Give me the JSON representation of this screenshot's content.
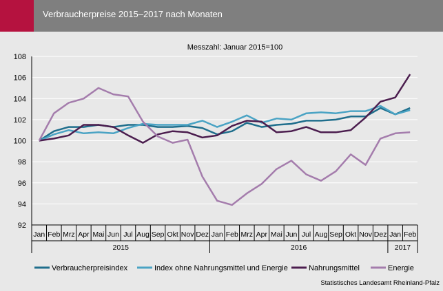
{
  "header": {
    "title": "Verbraucherpreise 2015–2017 nach Monaten"
  },
  "source": "Statistisches Landesamt Rheinland-Pfalz",
  "colors": {
    "header_bg": "#7f7f7f",
    "accent": "#b5123f",
    "Verbraucherpreisindex": "#1f6e8c",
    "Index ohne Nahrungsmittel und Energie": "#4aa3c4",
    "Nahrungsmittel": "#4b1d4e",
    "Energie": "#a47cac"
  },
  "chart_data": {
    "type": "line",
    "subtitle": "Messzahl: Januar 2015=100",
    "categories": [
      "Jan",
      "Feb",
      "Mrz",
      "Apr",
      "Mai",
      "Jun",
      "Jul",
      "Aug",
      "Sep",
      "Okt",
      "Nov",
      "Dez",
      "Jan",
      "Feb",
      "Mrz",
      "Apr",
      "Mai",
      "Jun",
      "Jul",
      "Aug",
      "Sep",
      "Okt",
      "Nov",
      "Dez",
      "Jan",
      "Feb"
    ],
    "years": [
      {
        "label": "2015",
        "start": 0,
        "count": 12
      },
      {
        "label": "2016",
        "start": 12,
        "count": 12
      },
      {
        "label": "2017",
        "start": 24,
        "count": 2
      }
    ],
    "ylim": [
      92,
      108
    ],
    "yticks": [
      92,
      94,
      96,
      98,
      100,
      102,
      104,
      106,
      108
    ],
    "grid": "horizontal",
    "legend_position": "bottom",
    "series": [
      {
        "name": "Verbraucherpreisindex",
        "color": "#1f6e8c",
        "values": [
          100.0,
          100.9,
          101.3,
          101.3,
          101.5,
          101.3,
          101.5,
          101.5,
          101.3,
          101.3,
          101.4,
          101.2,
          100.6,
          100.9,
          101.7,
          101.3,
          101.5,
          101.6,
          101.9,
          101.9,
          102.0,
          102.3,
          102.3,
          103.1,
          102.5,
          103.1
        ]
      },
      {
        "name": "Index ohne Nahrungsmittel und Energie",
        "color": "#4aa3c4",
        "values": [
          100.0,
          100.6,
          101.0,
          100.7,
          100.8,
          100.7,
          101.2,
          101.6,
          101.5,
          101.5,
          101.5,
          101.9,
          101.3,
          101.8,
          102.4,
          101.7,
          102.1,
          102.0,
          102.6,
          102.7,
          102.6,
          102.8,
          102.8,
          103.3,
          102.5,
          102.9
        ]
      },
      {
        "name": "Nahrungsmittel",
        "color": "#4b1d4e",
        "values": [
          100.0,
          100.2,
          100.5,
          101.5,
          101.5,
          101.3,
          100.5,
          99.8,
          100.6,
          100.9,
          100.8,
          100.3,
          100.5,
          101.4,
          101.9,
          101.8,
          100.8,
          100.9,
          101.3,
          100.8,
          100.8,
          101.0,
          102.2,
          103.7,
          104.1,
          106.3
        ]
      },
      {
        "name": "Energie",
        "color": "#a47cac",
        "values": [
          100.0,
          102.6,
          103.6,
          104.0,
          105.0,
          104.4,
          104.2,
          101.8,
          100.4,
          99.8,
          100.1,
          96.6,
          94.3,
          93.9,
          95.0,
          95.9,
          97.3,
          98.1,
          96.8,
          96.2,
          97.1,
          98.7,
          97.7,
          100.2,
          100.7,
          100.8
        ]
      }
    ]
  }
}
